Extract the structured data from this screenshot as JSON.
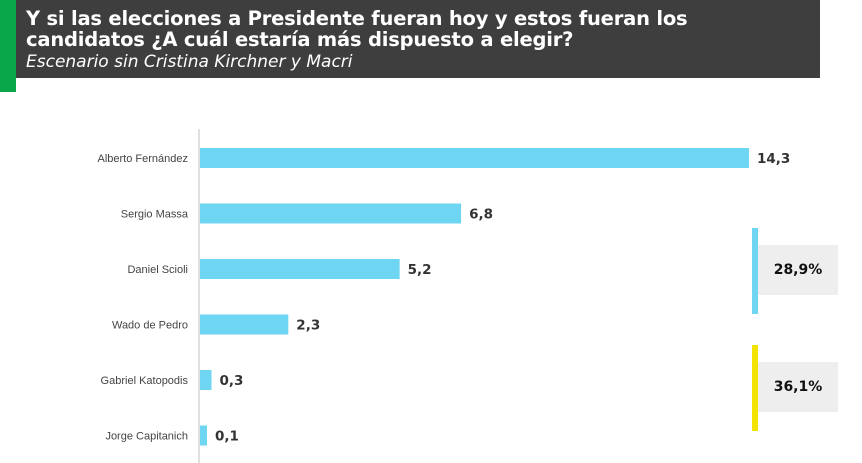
{
  "header": {
    "title_line1": "Y si las elecciones a Presidente fueran hoy y estos fueran los",
    "title_line2": "candidatos ¿A cuál estaría más dispuesto a elegir?",
    "subtitle": "Escenario sin Cristina Kirchner y Macri"
  },
  "colors": {
    "bar": "#6ed6f3",
    "accent_green": "#0aa64a",
    "summary_blue": "#6ed6f3",
    "summary_yellow": "#f3e400",
    "header_bg": "#3e3e3e"
  },
  "chart_data": {
    "type": "bar",
    "orientation": "horizontal",
    "categories": [
      "Alberto Fernández",
      "Sergio Massa",
      "Daniel Scioli",
      "Wado de Pedro",
      "Gabriel Katopodis",
      "Jorge Capitanich"
    ],
    "values": [
      14.3,
      6.8,
      5.2,
      2.3,
      0.3,
      0.1
    ],
    "value_labels": [
      "14,3",
      "6,8",
      "5,2",
      "2,3",
      "0,3",
      "0,1"
    ],
    "xlim": [
      0,
      14.3
    ],
    "grid": false,
    "legend": "none"
  },
  "summaries": [
    {
      "label": "28,9%",
      "color": "#6ed6f3"
    },
    {
      "label": "36,1%",
      "color": "#f3e400"
    }
  ]
}
